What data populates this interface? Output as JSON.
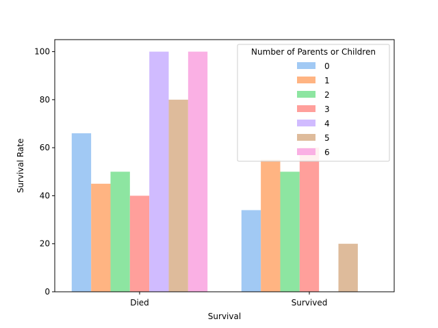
{
  "chart_data": {
    "type": "bar",
    "title": "",
    "xlabel": "Survival",
    "ylabel": "Survival Rate",
    "categories": [
      "Died",
      "Survived"
    ],
    "ylim": [
      0,
      105
    ],
    "yticks": [
      0,
      20,
      40,
      60,
      80,
      100
    ],
    "grid": false,
    "legend": {
      "title": "Number of Parents or Children",
      "placement": "top-right"
    },
    "series": [
      {
        "name": "0",
        "color": "#a1c9f4",
        "values": [
          66,
          34
        ]
      },
      {
        "name": "1",
        "color": "#ffb482",
        "values": [
          45,
          55
        ]
      },
      {
        "name": "2",
        "color": "#8de5a1",
        "values": [
          50,
          50
        ]
      },
      {
        "name": "3",
        "color": "#ff9f9b",
        "values": [
          40,
          60
        ]
      },
      {
        "name": "4",
        "color": "#d0bbff",
        "values": [
          100,
          0
        ]
      },
      {
        "name": "5",
        "color": "#debb9b",
        "values": [
          80,
          20
        ]
      },
      {
        "name": "6",
        "color": "#fab0e4",
        "values": [
          100,
          0
        ]
      }
    ]
  }
}
